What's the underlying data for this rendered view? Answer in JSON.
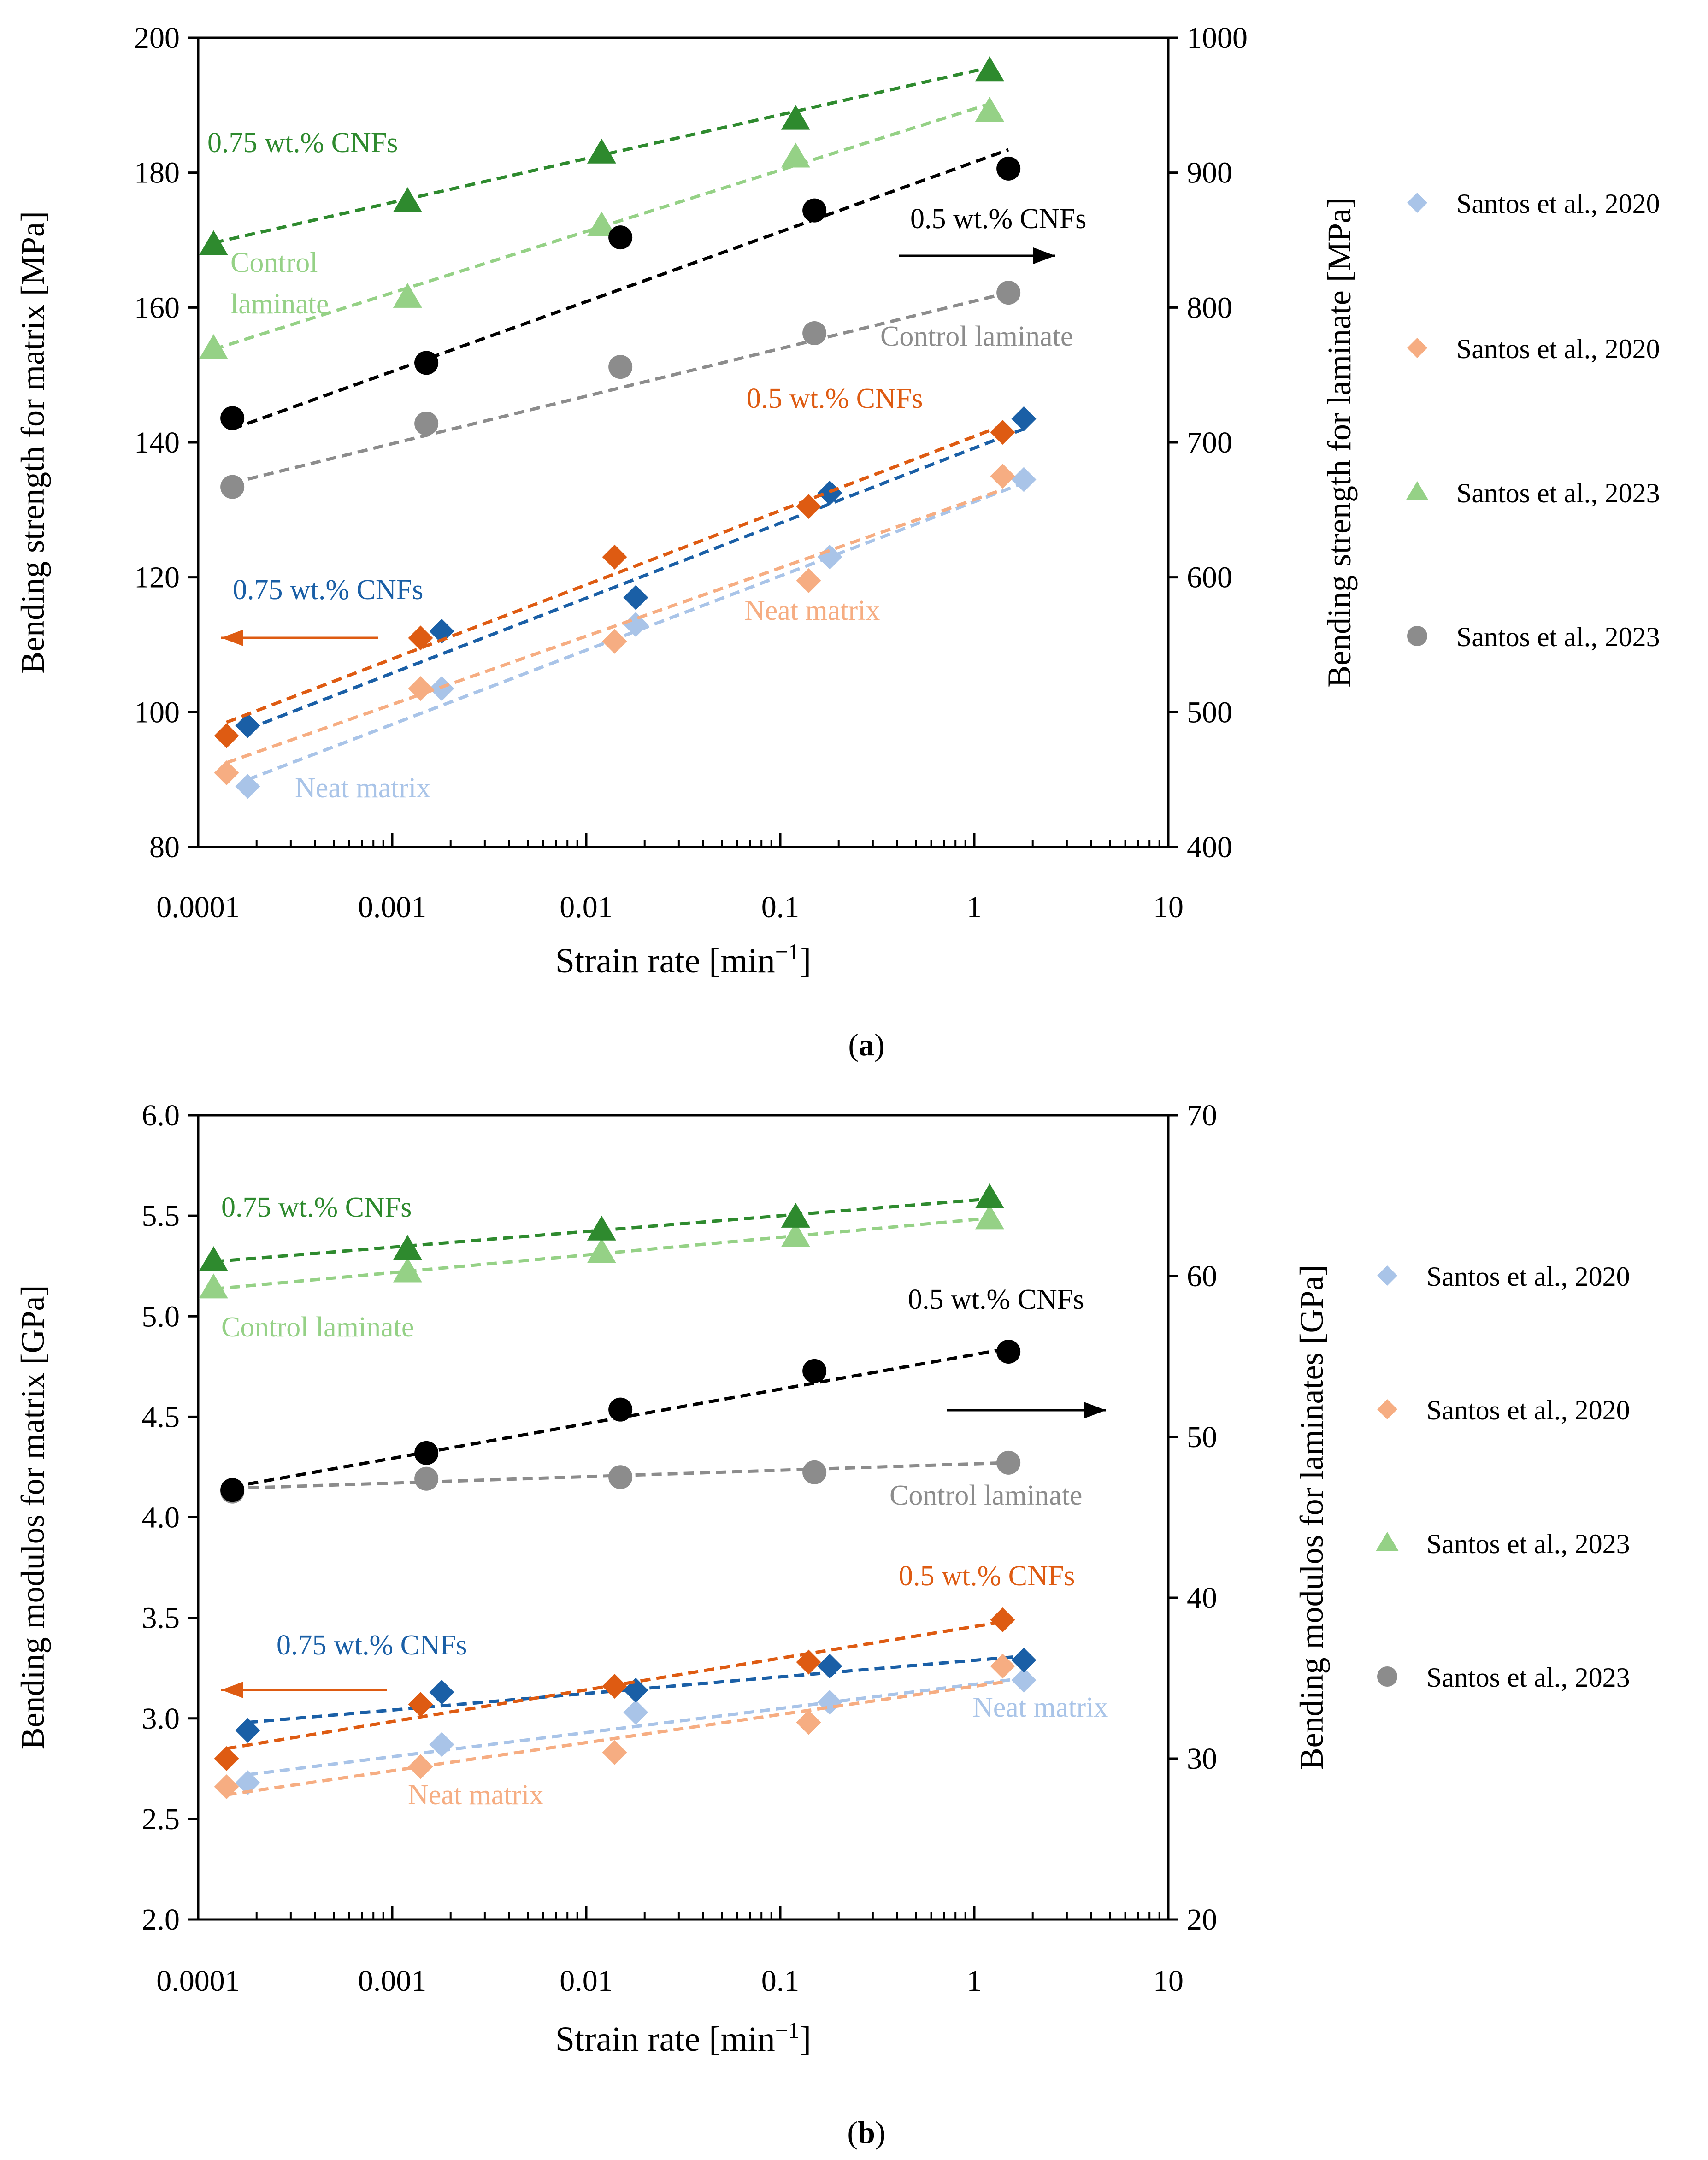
{
  "colors": {
    "matrix_2020_light_blue": "#a9c4e8",
    "matrix_2020_dark_blue": "#1a5fa6",
    "matrix_2020_light_orange": "#f6ad82",
    "matrix_2020_dark_orange": "#de5b12",
    "laminate_2023_light_green": "#95d186",
    "laminate_2023_dark_green": "#2e8a2e",
    "laminate_2023_gray": "#8c8c8c",
    "laminate_2023_black": "#000000",
    "axis": "#000000"
  },
  "legend_labels": [
    "Santos et al., 2020",
    "Santos et al., 2020",
    "Santos et al., 2023",
    "Santos et al., 2023"
  ],
  "chart_data": [
    {
      "type": "scatter",
      "panel": "a",
      "caption_open": "(",
      "caption_letter": "a",
      "caption_close": ")",
      "xlabel": "Strain rate [min",
      "xlabel_sup": "−1",
      "xlabel_close": "]",
      "ylabel": "Bending strength for matrix [MPa]",
      "y2label": "Bending strength for laminate [MPa]",
      "xscale": "log",
      "xlim": [
        0.0001,
        10
      ],
      "ylim": [
        80,
        200
      ],
      "y2lim": [
        400,
        1000
      ],
      "xticks": [
        "0.0001",
        "0.001",
        "0.01",
        "0.1",
        "1",
        "10"
      ],
      "yticks": [
        "80",
        "100",
        "120",
        "140",
        "160",
        "180",
        "200"
      ],
      "y2ticks": [
        "400",
        "500",
        "600",
        "700",
        "800",
        "900",
        "1000"
      ],
      "series": [
        {
          "name": "Neat matrix (Santos et al., 2020)",
          "axis": "left",
          "marker": "diamond",
          "color": "#a9c4e8",
          "x": [
            0.00018,
            0.0018,
            0.018,
            0.18,
            1.8
          ],
          "y": [
            89,
            103.5,
            113,
            123,
            134.5
          ],
          "fit": [
            90,
            134
          ]
        },
        {
          "name": "0.75 wt.% CNFs (Santos et al., 2020)",
          "axis": "left",
          "marker": "diamond",
          "color": "#1a5fa6",
          "x": [
            0.00018,
            0.0018,
            0.018,
            0.18,
            1.8
          ],
          "y": [
            98,
            112,
            117,
            132.5,
            143.5
          ],
          "fit": [
            97.5,
            142
          ]
        },
        {
          "name": "Neat matrix (Santos et al., 2020)",
          "axis": "left",
          "marker": "diamond",
          "color": "#f6ad82",
          "x": [
            0.00014,
            0.0014,
            0.014,
            0.14,
            1.4
          ],
          "y": [
            91,
            103.5,
            110.5,
            119.5,
            135
          ],
          "fit": [
            92.5,
            133
          ]
        },
        {
          "name": "0.5 wt.% CNFs (Santos et al., 2020)",
          "axis": "left",
          "marker": "diamond",
          "color": "#de5b12",
          "x": [
            0.00014,
            0.0014,
            0.014,
            0.14,
            1.4
          ],
          "y": [
            96.5,
            111,
            123,
            130.5,
            141.5
          ],
          "fit": [
            98.5,
            142.5
          ]
        },
        {
          "name": "Control laminate (Santos et al., 2023)",
          "axis": "right",
          "marker": "triangle",
          "color": "#95d186",
          "x": [
            0.00012,
            0.0012,
            0.012,
            0.12,
            1.2
          ],
          "y": [
            770,
            808,
            861,
            912,
            946
          ],
          "fit": [
            769,
            951
          ]
        },
        {
          "name": "0.75 wt.% CNFs (Santos et al., 2023)",
          "axis": "right",
          "marker": "triangle",
          "color": "#2e8a2e",
          "x": [
            0.00012,
            0.0012,
            0.012,
            0.12,
            1.2
          ],
          "y": [
            847,
            879,
            915,
            940,
            976
          ],
          "fit": [
            848,
            978
          ]
        },
        {
          "name": "Control laminate (Santos et al., 2023)",
          "axis": "right",
          "marker": "circle",
          "color": "#8c8c8c",
          "x": [
            0.00015,
            0.0015,
            0.015,
            0.15,
            1.5
          ],
          "y": [
            667,
            714,
            756,
            781,
            811
          ],
          "fit": [
            670,
            811
          ]
        },
        {
          "name": "0.5 wt.% CNFs (Santos et al., 2023)",
          "axis": "right",
          "marker": "circle",
          "color": "#000000",
          "x": [
            0.00015,
            0.0015,
            0.015,
            0.15,
            1.5
          ],
          "y": [
            718,
            759,
            852,
            872,
            903
          ],
          "fit": [
            710,
            917
          ]
        }
      ],
      "annotations": [
        {
          "text": "0.75 wt.% CNFs",
          "color": "#2e8a2e"
        },
        {
          "text": "Control",
          "color": "#95d186"
        },
        {
          "text": "laminate",
          "color": "#95d186"
        },
        {
          "text": "0.5 wt.% CNFs",
          "color": "#000000"
        },
        {
          "text": "Control laminate",
          "color": "#8c8c8c"
        },
        {
          "text": "0.5 wt.% CNFs",
          "color": "#de5b12"
        },
        {
          "text": "0.75 wt.% CNFs",
          "color": "#1a5fa6"
        },
        {
          "text": "Neat matrix",
          "color": "#f6ad82"
        },
        {
          "text": "Neat matrix",
          "color": "#a9c4e8"
        }
      ],
      "arrows": [
        {
          "direction": "right",
          "meaning": "right axis",
          "color": "#000000"
        },
        {
          "direction": "left",
          "meaning": "left axis",
          "color": "#de5b12"
        }
      ]
    },
    {
      "type": "scatter",
      "panel": "b",
      "caption_open": "(",
      "caption_letter": "b",
      "caption_close": ")",
      "xlabel": "Strain rate [min",
      "xlabel_sup": "−1",
      "xlabel_close": "]",
      "ylabel": "Bending modulos for matrix [GPa]",
      "y2label": "Bending modulos for laminates [GPa]",
      "xscale": "log",
      "xlim": [
        0.0001,
        10
      ],
      "ylim": [
        2.0,
        6.0
      ],
      "y2lim": [
        20,
        70
      ],
      "xticks": [
        "0.0001",
        "0.001",
        "0.01",
        "0.1",
        "1",
        "10"
      ],
      "yticks": [
        "2.0",
        "2.5",
        "3.0",
        "3.5",
        "4.0",
        "4.5",
        "5.0",
        "5.5",
        "6.0"
      ],
      "y2ticks": [
        "20",
        "30",
        "40",
        "50",
        "60",
        "70"
      ],
      "series": [
        {
          "name": "Neat matrix (Santos et al., 2020)",
          "axis": "left",
          "marker": "diamond",
          "color": "#a9c4e8",
          "x": [
            0.00018,
            0.0018,
            0.018,
            0.18,
            1.8
          ],
          "y": [
            2.68,
            2.87,
            3.03,
            3.08,
            3.19
          ],
          "fit": [
            2.72,
            3.2
          ]
        },
        {
          "name": "0.75 wt.% CNFs (Santos et al., 2020)",
          "axis": "left",
          "marker": "diamond",
          "color": "#1a5fa6",
          "x": [
            0.00018,
            0.0018,
            0.018,
            0.18,
            1.8
          ],
          "y": [
            2.94,
            3.13,
            3.14,
            3.26,
            3.29
          ],
          "fit": [
            2.98,
            3.31
          ]
        },
        {
          "name": "Neat matrix (Santos et al., 2020)",
          "axis": "left",
          "marker": "diamond",
          "color": "#f6ad82",
          "x": [
            0.00014,
            0.0014,
            0.014,
            0.14,
            1.4
          ],
          "y": [
            2.66,
            2.76,
            2.83,
            2.98,
            3.26
          ],
          "fit": [
            2.62,
            3.18
          ]
        },
        {
          "name": "0.5 wt.% CNFs (Santos et al., 2020)",
          "axis": "left",
          "marker": "diamond",
          "color": "#de5b12",
          "x": [
            0.00014,
            0.0014,
            0.014,
            0.14,
            1.4
          ],
          "y": [
            2.8,
            3.07,
            3.16,
            3.28,
            3.49
          ],
          "fit": [
            2.85,
            3.48
          ]
        },
        {
          "name": "Control laminate (Santos et al., 2023)",
          "axis": "right",
          "marker": "triangle",
          "color": "#95d186",
          "x": [
            0.00012,
            0.0012,
            0.012,
            0.12,
            1.2
          ],
          "y": [
            59.3,
            60.3,
            61.5,
            62.5,
            63.6
          ],
          "fit": [
            59.2,
            63.6
          ]
        },
        {
          "name": "0.75 wt.% CNFs (Santos et al., 2023)",
          "axis": "right",
          "marker": "triangle",
          "color": "#2e8a2e",
          "x": [
            0.00012,
            0.0012,
            0.012,
            0.12,
            1.2
          ],
          "y": [
            61.0,
            61.7,
            62.9,
            63.7,
            64.9
          ],
          "fit": [
            60.9,
            64.8
          ]
        },
        {
          "name": "Control laminate (Santos et al., 2023)",
          "axis": "right",
          "marker": "circle",
          "color": "#8c8c8c",
          "x": [
            0.00015,
            0.0015,
            0.015,
            0.15,
            1.5
          ],
          "y": [
            46.6,
            47.4,
            47.5,
            47.8,
            48.4
          ],
          "fit": [
            46.8,
            48.4
          ]
        },
        {
          "name": "0.5 wt.% CNFs (Santos et al., 2023)",
          "axis": "right",
          "marker": "circle",
          "color": "#000000",
          "x": [
            0.00015,
            0.0015,
            0.015,
            0.15,
            1.5
          ],
          "y": [
            46.7,
            49.0,
            51.7,
            54.1,
            55.3
          ],
          "fit": [
            46.9,
            55.5
          ]
        }
      ],
      "annotations": [
        {
          "text": "0.75 wt.% CNFs",
          "color": "#2e8a2e"
        },
        {
          "text": "Control laminate",
          "color": "#95d186"
        },
        {
          "text": "0.5 wt.% CNFs",
          "color": "#000000"
        },
        {
          "text": "Control laminate",
          "color": "#8c8c8c"
        },
        {
          "text": "0.5 wt.% CNFs",
          "color": "#de5b12"
        },
        {
          "text": "0.75 wt.% CNFs",
          "color": "#1a5fa6"
        },
        {
          "text": "Neat matrix",
          "color": "#a9c4e8"
        },
        {
          "text": "Neat matrix",
          "color": "#f6ad82"
        }
      ],
      "arrows": [
        {
          "direction": "right",
          "meaning": "right axis",
          "color": "#000000"
        },
        {
          "direction": "left",
          "meaning": "left axis",
          "color": "#de5b12"
        }
      ]
    }
  ]
}
